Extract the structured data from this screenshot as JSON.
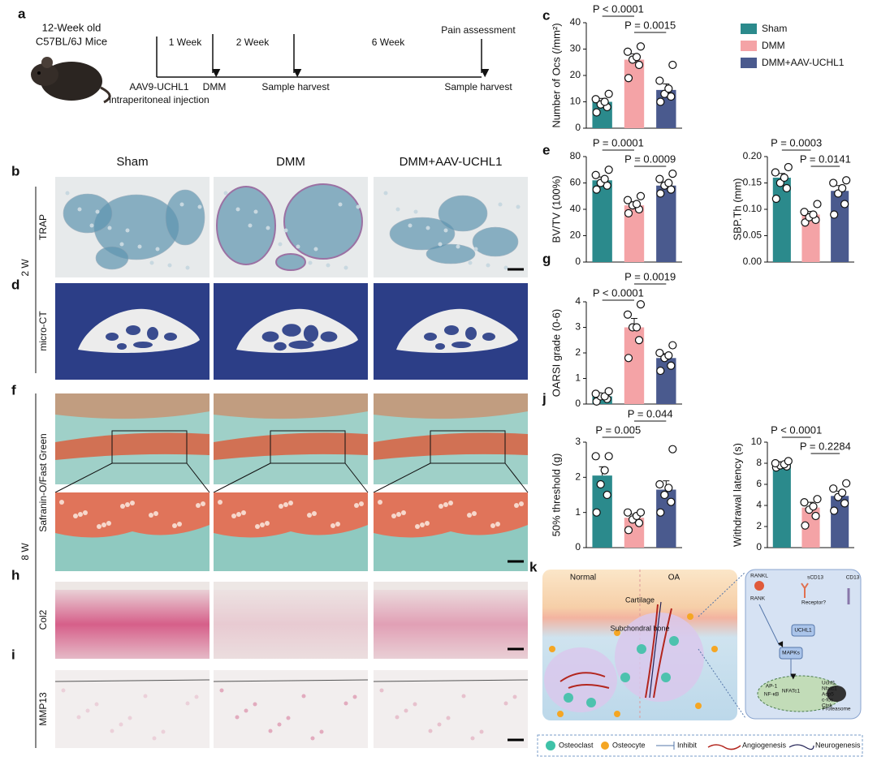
{
  "panel_a": {
    "letter": "a",
    "subject": [
      "12-Week old",
      "C57BL/6J Mice"
    ],
    "timeline_spans": [
      "1 Week",
      "2 Week",
      "6 Week"
    ],
    "top_note": "Pain assessment",
    "events": [
      "AAV9-UCHL1",
      "intraperitoneal injection",
      "DMM",
      "Sample harvest",
      "Sample harvest"
    ]
  },
  "histology": {
    "columns": [
      "Sham",
      "DMM",
      "DMM+AAV-UCHL1"
    ],
    "letters": [
      "b",
      "d",
      "f",
      "h",
      "i"
    ],
    "stains": [
      "TRAP",
      "micro-CT",
      "Safranin-O/Fast Green",
      "Col2",
      "MMP13"
    ],
    "timepoints": [
      "2 W",
      "8 W"
    ]
  },
  "groups": [
    {
      "name": "Sham",
      "color": "#2b8a8c"
    },
    {
      "name": "DMM",
      "color": "#f4a3a6"
    },
    {
      "name": "DMM+AAV-UCHL1",
      "color": "#4a5a8e"
    }
  ],
  "chart_data": [
    {
      "type": "bar",
      "label": "c",
      "y_label": "Number of Ocs (/mm²)",
      "values": [
        10,
        26,
        14.5
      ],
      "errors": [
        1.3,
        2.2,
        2.3
      ],
      "points": [
        [
          6,
          8,
          9,
          10,
          11,
          13
        ],
        [
          19,
          24,
          26,
          27,
          29,
          31
        ],
        [
          10,
          12,
          13,
          15,
          18,
          24
        ]
      ],
      "ylim": [
        0,
        40
      ],
      "yticks": [
        0,
        10,
        20,
        30,
        40
      ],
      "annotations": [
        "P < 0.0001",
        "P = 0.0015"
      ]
    },
    {
      "type": "bar",
      "label": "e",
      "y_label": "BV/TV (100%)",
      "values": [
        62,
        43,
        58
      ],
      "errors": [
        2.5,
        2,
        2.5
      ],
      "points": [
        [
          55,
          58,
          60,
          63,
          66,
          70
        ],
        [
          37,
          40,
          43,
          44,
          47,
          50
        ],
        [
          52,
          55,
          58,
          60,
          63,
          67
        ]
      ],
      "ylim": [
        0,
        80
      ],
      "yticks": [
        0,
        20,
        40,
        60,
        80
      ],
      "annotations": [
        "P = 0.0001",
        "P = 0.0009"
      ]
    },
    {
      "type": "bar",
      "y_label": "SBP.Th (mm)",
      "values": [
        0.16,
        0.09,
        0.135
      ],
      "errors": [
        0.008,
        0.006,
        0.01
      ],
      "points": [
        [
          0.12,
          0.14,
          0.15,
          0.16,
          0.17,
          0.18
        ],
        [
          0.075,
          0.08,
          0.085,
          0.09,
          0.095,
          0.11
        ],
        [
          0.09,
          0.11,
          0.13,
          0.14,
          0.15,
          0.155
        ]
      ],
      "ylim": [
        0,
        0.2
      ],
      "yticks": [
        {
          "value": 0,
          "label": "0.00"
        },
        {
          "value": 0.05,
          "label": "0.05"
        },
        {
          "value": 0.1,
          "label": "0.10"
        },
        {
          "value": 0.15,
          "label": "0.15"
        },
        {
          "value": 0.2,
          "label": "0.20"
        }
      ],
      "annotations": [
        "P = 0.0003",
        "P = 0.0141"
      ]
    },
    {
      "type": "bar",
      "label": "g",
      "y_label": "OARSI grade (0-6)",
      "values": [
        0.3,
        3.0,
        1.8
      ],
      "errors": [
        0.07,
        0.35,
        0.17
      ],
      "points": [
        [
          0.1,
          0.2,
          0.3,
          0.3,
          0.4,
          0.5
        ],
        [
          1.8,
          2.5,
          3.0,
          3.0,
          3.5,
          3.9
        ],
        [
          1.3,
          1.5,
          1.8,
          1.9,
          2.0,
          2.3
        ]
      ],
      "ylim": [
        0,
        4
      ],
      "yticks": [
        0,
        1,
        2,
        3,
        4
      ],
      "annotations": [
        "P < 0.0001",
        "P = 0.0019"
      ]
    },
    {
      "type": "bar",
      "label": "j",
      "y_label": "50% threshold (g)",
      "values": [
        2.05,
        0.85,
        1.65
      ],
      "errors": [
        0.25,
        0.1,
        0.25
      ],
      "points": [
        [
          1.0,
          1.5,
          1.8,
          2.2,
          2.6,
          2.6
        ],
        [
          0.5,
          0.7,
          0.8,
          0.9,
          1.0,
          1.0
        ],
        [
          1.0,
          1.3,
          1.5,
          1.7,
          1.8,
          2.8
        ]
      ],
      "ylim": [
        0,
        3
      ],
      "yticks": [
        0,
        1,
        2,
        3
      ],
      "annotations": [
        "P = 0.005",
        "P = 0.044"
      ]
    },
    {
      "type": "bar",
      "y_label": "Withdrawal latency (s)",
      "values": [
        7.9,
        3.8,
        4.9
      ],
      "errors": [
        0.15,
        0.5,
        0.45
      ],
      "points": [
        [
          7.6,
          7.7,
          7.8,
          7.9,
          8.0,
          8.2
        ],
        [
          2.1,
          3.0,
          3.6,
          3.9,
          4.3,
          4.6
        ],
        [
          3.5,
          4.2,
          4.8,
          5.2,
          5.6,
          6.1
        ]
      ],
      "ylim": [
        0,
        10
      ],
      "yticks": [
        0,
        2,
        4,
        6,
        8,
        10
      ],
      "annotations": [
        "P < 0.0001",
        "P = 0.2284"
      ]
    }
  ],
  "panel_k": {
    "letter": "k",
    "regions": [
      "Normal",
      "OA",
      "Cartilage",
      "Subchondral bone"
    ],
    "molecules": [
      "RANKL",
      "RANK",
      "Receptor?",
      "sCD13",
      "CD13",
      "UCHL1",
      "MAPKs",
      "Proteasome"
    ],
    "factors": [
      "AP-1",
      "NF-κB",
      "NFATc1"
    ],
    "genes": [
      "Uchl1",
      "Nfatc1",
      "Acp5",
      "c-fos",
      "Ctsk"
    ],
    "legend": [
      "Osteoclast",
      "Osteocyte",
      "Inhibit",
      "Angiogenesis",
      "Neurogenesis"
    ]
  }
}
